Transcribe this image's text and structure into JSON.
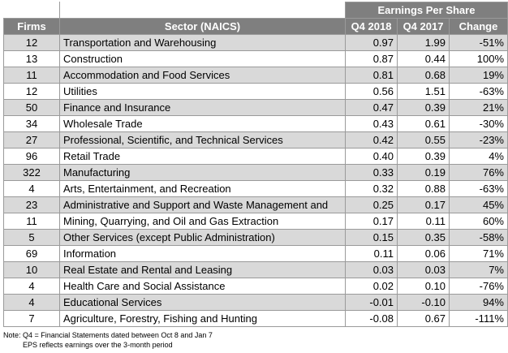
{
  "header": {
    "group_label": "Earnings Per Share",
    "columns": [
      "Firms",
      "Sector (NAICS)",
      "Q4 2018",
      "Q4 2017",
      "Change"
    ]
  },
  "rows": [
    {
      "firms": "12",
      "sector": "Transportation and Warehousing",
      "q4_2018": "0.97",
      "q4_2017": "1.99",
      "change": "-51%"
    },
    {
      "firms": "13",
      "sector": "Construction",
      "q4_2018": "0.87",
      "q4_2017": "0.44",
      "change": "100%"
    },
    {
      "firms": "11",
      "sector": "Accommodation and Food Services",
      "q4_2018": "0.81",
      "q4_2017": "0.68",
      "change": "19%"
    },
    {
      "firms": "12",
      "sector": "Utilities",
      "q4_2018": "0.56",
      "q4_2017": "1.51",
      "change": "-63%"
    },
    {
      "firms": "50",
      "sector": "Finance and Insurance",
      "q4_2018": "0.47",
      "q4_2017": "0.39",
      "change": "21%"
    },
    {
      "firms": "34",
      "sector": "Wholesale Trade",
      "q4_2018": "0.43",
      "q4_2017": "0.61",
      "change": "-30%"
    },
    {
      "firms": "27",
      "sector": "Professional, Scientific, and Technical Services",
      "q4_2018": "0.42",
      "q4_2017": "0.55",
      "change": "-23%"
    },
    {
      "firms": "96",
      "sector": "Retail Trade",
      "q4_2018": "0.40",
      "q4_2017": "0.39",
      "change": "4%"
    },
    {
      "firms": "322",
      "sector": "Manufacturing",
      "q4_2018": "0.33",
      "q4_2017": "0.19",
      "change": "76%"
    },
    {
      "firms": "4",
      "sector": "Arts, Entertainment, and Recreation",
      "q4_2018": "0.32",
      "q4_2017": "0.88",
      "change": "-63%"
    },
    {
      "firms": "23",
      "sector": "Administrative and Support and Waste Management and",
      "q4_2018": "0.25",
      "q4_2017": "0.17",
      "change": "45%"
    },
    {
      "firms": "11",
      "sector": "Mining, Quarrying, and Oil and Gas Extraction",
      "q4_2018": "0.17",
      "q4_2017": "0.11",
      "change": "60%"
    },
    {
      "firms": "5",
      "sector": "Other Services (except Public Administration)",
      "q4_2018": "0.15",
      "q4_2017": "0.35",
      "change": "-58%"
    },
    {
      "firms": "69",
      "sector": "Information",
      "q4_2018": "0.11",
      "q4_2017": "0.06",
      "change": "71%"
    },
    {
      "firms": "10",
      "sector": "Real Estate and Rental and Leasing",
      "q4_2018": "0.03",
      "q4_2017": "0.03",
      "change": "7%"
    },
    {
      "firms": "4",
      "sector": "Health Care and Social Assistance",
      "q4_2018": "0.02",
      "q4_2017": "0.10",
      "change": "-76%"
    },
    {
      "firms": "4",
      "sector": "Educational Services",
      "q4_2018": "-0.01",
      "q4_2017": "-0.10",
      "change": "94%"
    },
    {
      "firms": "7",
      "sector": "Agriculture, Forestry, Fishing and Hunting",
      "q4_2018": "-0.08",
      "q4_2017": "0.67",
      "change": "-111%"
    }
  ],
  "notes": {
    "line1": "Note:  Q4 = Financial Statements dated between Oct 8 and Jan 7",
    "line2": "EPS reflects earnings over the 3-month period"
  },
  "colors": {
    "header_bg": "#7f7f7f",
    "header_text": "#ffffff",
    "shaded_row": "#d9d9d9",
    "border": "#9a9a9a"
  }
}
